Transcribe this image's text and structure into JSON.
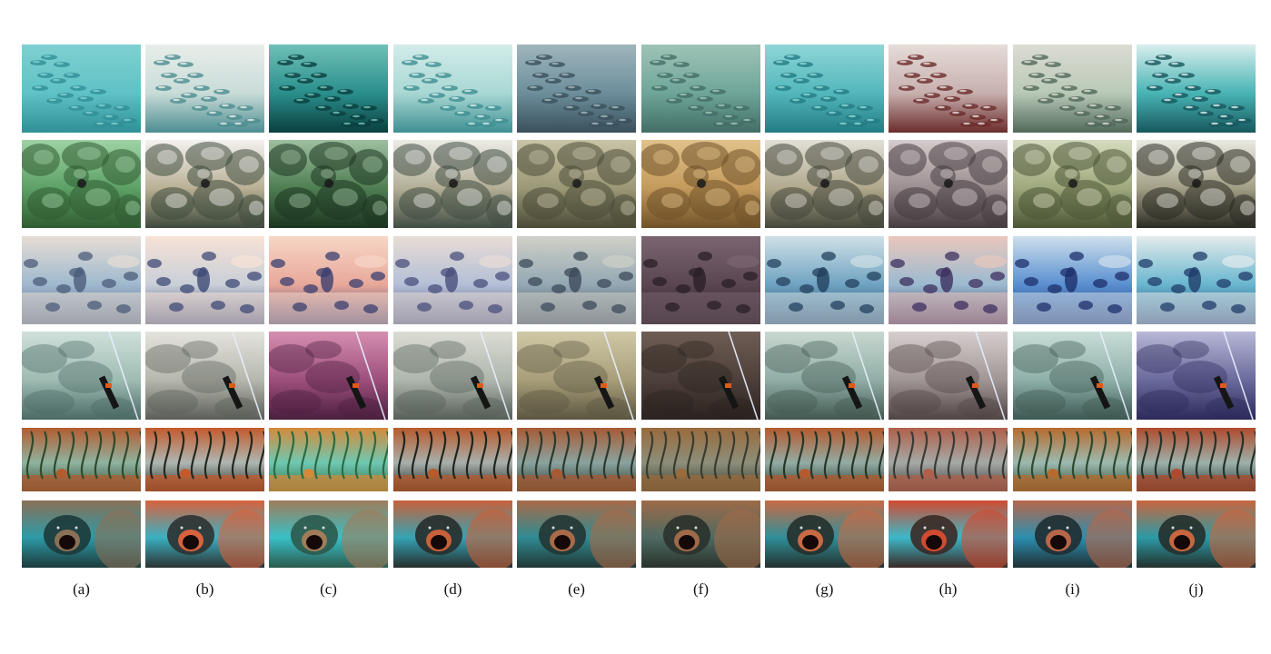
{
  "column_labels": [
    "(a)",
    "(b)",
    "(c)",
    "(d)",
    "(e)",
    "(f)",
    "(g)",
    "(h)",
    "(i)",
    "(j)"
  ],
  "rows": [
    {
      "scene": "fish-school",
      "tones": [
        [
          "#5fc2c6",
          "#2f8f96",
          "#7fd0d0"
        ],
        [
          "#c9dcd8",
          "#4c8d91",
          "#e8eeea"
        ],
        [
          "#2a8f8c",
          "#0a3f3f",
          "#6fc0b8"
        ],
        [
          "#a9d8d4",
          "#3e8f92",
          "#d2ecea"
        ],
        [
          "#6d8e9c",
          "#3a505c",
          "#9fb6bc"
        ],
        [
          "#6fa59a",
          "#426e66",
          "#9ec4b6"
        ],
        [
          "#52b7bc",
          "#237c84",
          "#8fd6d6"
        ],
        [
          "#c7b0ae",
          "#6b2c2c",
          "#e6dcd8"
        ],
        [
          "#b9c9b8",
          "#51695a",
          "#dcdcd2"
        ],
        [
          "#49b4b4",
          "#16585e",
          "#d9eeee"
        ]
      ]
    },
    {
      "scene": "reef",
      "tones": [
        [
          "#5da066",
          "#2f5b31",
          "#9fd3a6"
        ],
        [
          "#b9b095",
          "#3e4a3c",
          "#f4f2ee"
        ],
        [
          "#4f7e52",
          "#1b3420",
          "#9fc0a1"
        ],
        [
          "#b3ae96",
          "#3f4d42",
          "#ecece6"
        ],
        [
          "#9b9877",
          "#4a4a36",
          "#c8c4a6"
        ],
        [
          "#c39a5c",
          "#6f5128",
          "#e2c28a"
        ],
        [
          "#b0a98d",
          "#43463a",
          "#e2e0d6"
        ],
        [
          "#9a8e90",
          "#463c40",
          "#d6ccce"
        ],
        [
          "#9ea87c",
          "#4b5434",
          "#d6dcc0"
        ],
        [
          "#a39f86",
          "#2a2a22",
          "#eaeae2"
        ]
      ]
    },
    {
      "scene": "diver",
      "tones": [
        [
          "#9fb9cf",
          "#4b5c7a",
          "#e6ddd4"
        ],
        [
          "#c9cfd8",
          "#3d4a76",
          "#f7e2d6"
        ],
        [
          "#e8a89a",
          "#3b3f6f",
          "#f7d6c6"
        ],
        [
          "#b4bfd6",
          "#4a4f7c",
          "#e8ddd6"
        ],
        [
          "#94a8b3",
          "#3c4a5a",
          "#cfd0c8"
        ],
        [
          "#5a4650",
          "#2a1f28",
          "#7a6570"
        ],
        [
          "#6fa3c2",
          "#21405e",
          "#cfe0e6"
        ],
        [
          "#9bbad0",
          "#3c2f5f",
          "#e9c7bd"
        ],
        [
          "#5a8fd0",
          "#1d2f6b",
          "#cde0ec"
        ],
        [
          "#69b6cf",
          "#1f3c6a",
          "#e3ebec"
        ]
      ]
    },
    {
      "scene": "spearfish",
      "tones": [
        [
          "#9ebcb2",
          "#4b6a64",
          "#cfe0da"
        ],
        [
          "#b6b7ad",
          "#5b5e58",
          "#e4e4de"
        ],
        [
          "#9d4f7c",
          "#4a1f3e",
          "#d58fb0"
        ],
        [
          "#aeb7ad",
          "#565e58",
          "#dcdcd4"
        ],
        [
          "#a89e7a",
          "#5b5640",
          "#d0c8a6"
        ],
        [
          "#4d3f3a",
          "#2a221f",
          "#6e5d54"
        ],
        [
          "#90aea6",
          "#41574f",
          "#c8d8d0"
        ],
        [
          "#a19696",
          "#4f4444",
          "#d6cece"
        ],
        [
          "#8fb0a9",
          "#3b5751",
          "#c9ddd8"
        ],
        [
          "#6a6a9c",
          "#2c2a5a",
          "#b8b8d8"
        ]
      ]
    },
    {
      "scene": "kelp",
      "tones": [
        [
          "#8fb3a0",
          "#2f4a2c",
          "#b45c30"
        ],
        [
          "#aeb7b3",
          "#23291f",
          "#c45a2c"
        ],
        [
          "#6fc8b2",
          "#2e6b44",
          "#d48a3a"
        ],
        [
          "#a8b0ac",
          "#1f2620",
          "#b85a2c"
        ],
        [
          "#8aa39f",
          "#2b3a2f",
          "#a85a34"
        ],
        [
          "#8c8f7a",
          "#3a3c30",
          "#9a6a3c"
        ],
        [
          "#92aca4",
          "#253628",
          "#b45a2e"
        ],
        [
          "#a5a9a6",
          "#3a3a36",
          "#b0604a"
        ],
        [
          "#9cbab0",
          "#2c4a30",
          "#b86a2e"
        ],
        [
          "#9db1ac",
          "#24332a",
          "#b04a2c"
        ]
      ]
    },
    {
      "scene": "grouper",
      "tones": [
        [
          "#2d9aa8",
          "#1c3a3a",
          "#8a7056"
        ],
        [
          "#3bb0c2",
          "#2c3232",
          "#d8623c"
        ],
        [
          "#38c0c6",
          "#2b5a4e",
          "#a07c5a"
        ],
        [
          "#35a3b4",
          "#262e2c",
          "#c8603a"
        ],
        [
          "#2f8b92",
          "#223634",
          "#a86a48"
        ],
        [
          "#4d6a62",
          "#2a322c",
          "#9e6a48"
        ],
        [
          "#2f8f9a",
          "#23302c",
          "#c86a44"
        ],
        [
          "#3cb8c8",
          "#3a2a26",
          "#d24a30"
        ],
        [
          "#2c8fb0",
          "#1f2e32",
          "#b8664a"
        ],
        [
          "#2c9aa6",
          "#23302c",
          "#c9663e"
        ]
      ]
    }
  ]
}
